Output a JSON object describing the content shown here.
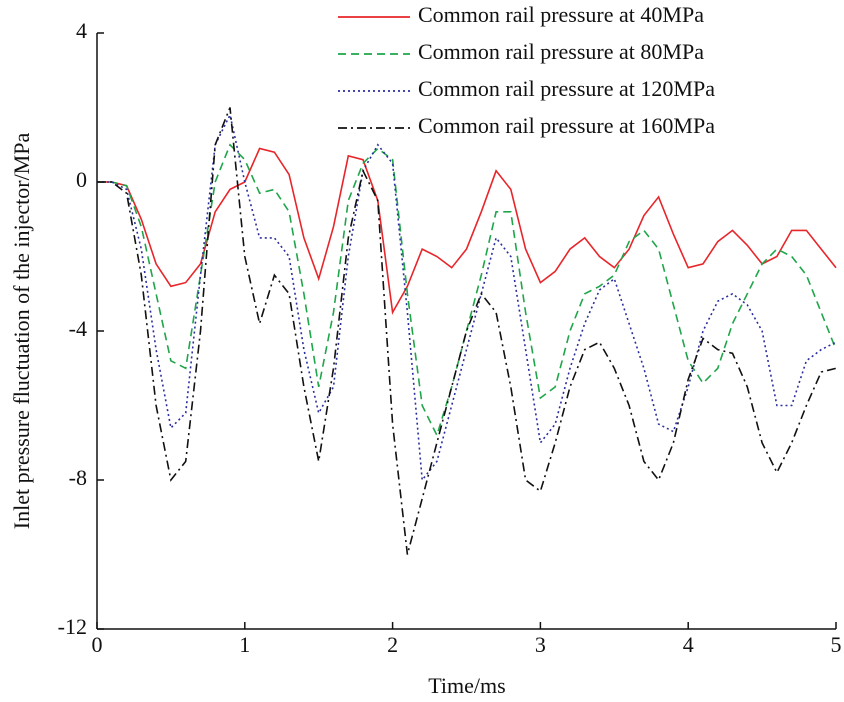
{
  "chart_data": {
    "type": "line",
    "xlabel": "Time/ms",
    "ylabel": "Inlet pressure fluctuation of the injector/MPa",
    "x": [
      0,
      0.1,
      0.2,
      0.3,
      0.4,
      0.5,
      0.6,
      0.7,
      0.8,
      0.9,
      1,
      1.1,
      1.2,
      1.3,
      1.4,
      1.5,
      1.6,
      1.7,
      1.8,
      1.9,
      2,
      2.1,
      2.2,
      2.3,
      2.4,
      2.5,
      2.6,
      2.7,
      2.8,
      2.9,
      3,
      3.1,
      3.2,
      3.3,
      3.4,
      3.5,
      3.6,
      3.7,
      3.8,
      3.9,
      4,
      4.1,
      4.2,
      4.3,
      4.4,
      4.5,
      4.6,
      4.7,
      4.8,
      4.9,
      5
    ],
    "series": [
      {
        "name": "Common rail pressure at 40MPa",
        "color": "#e8262a",
        "dash": "solid",
        "values": [
          0,
          0,
          -0.1,
          -1,
          -2.2,
          -2.8,
          -2.7,
          -2.2,
          -0.8,
          -0.2,
          0,
          0.9,
          0.8,
          0.2,
          -1.5,
          -2.6,
          -1.2,
          0.7,
          0.6,
          -0.5,
          -3.5,
          -2.8,
          -1.8,
          -2,
          -2.3,
          -1.8,
          -0.8,
          0.3,
          -0.2,
          -1.8,
          -2.7,
          -2.4,
          -1.8,
          -1.5,
          -2,
          -2.3,
          -1.8,
          -0.9,
          -0.4,
          -1.4,
          -2.3,
          -2.2,
          -1.6,
          -1.3,
          -1.7,
          -2.2,
          -2,
          -1.3,
          -1.3,
          -1.8,
          -2.3
        ]
      },
      {
        "name": "Common rail pressure at 80MPa",
        "color": "#1fa64a",
        "dash": "dashed",
        "values": [
          0,
          0,
          -0.1,
          -1.2,
          -3,
          -4.8,
          -5,
          -2.5,
          0,
          1,
          0.6,
          -0.3,
          -0.2,
          -0.8,
          -3,
          -5.5,
          -3.5,
          -0.5,
          0.5,
          0.9,
          0.6,
          -3,
          -6,
          -6.8,
          -5.5,
          -4,
          -2.5,
          -0.8,
          -0.8,
          -3.5,
          -5.8,
          -5.5,
          -4,
          -3,
          -2.8,
          -2.5,
          -1.6,
          -1.3,
          -1.8,
          -3.3,
          -4.8,
          -5.4,
          -5,
          -3.8,
          -3,
          -2.2,
          -1.8,
          -2,
          -2.5,
          -3.5,
          -4.5
        ]
      },
      {
        "name": "Common rail pressure at 120MPa",
        "color": "#2b2f9e",
        "dash": "dotted",
        "values": [
          0,
          0,
          -0.2,
          -1.8,
          -4.5,
          -6.6,
          -6.2,
          -2.5,
          1,
          1.8,
          0,
          -1.5,
          -1.5,
          -2,
          -4.5,
          -6.2,
          -5.5,
          -2,
          0.3,
          1,
          0.5,
          -3.5,
          -8,
          -7.5,
          -6,
          -4.5,
          -3,
          -1.5,
          -2,
          -4.5,
          -7,
          -6.5,
          -5,
          -3.8,
          -2.9,
          -2.6,
          -3.8,
          -5,
          -6.5,
          -6.7,
          -5.5,
          -4,
          -3.2,
          -3,
          -3.3,
          -4,
          -6,
          -6,
          -4.8,
          -4.5,
          -4.3
        ]
      },
      {
        "name": "Common rail pressure at 160MPa",
        "color": "#111111",
        "dash": "dashdot",
        "values": [
          0,
          0,
          -0.3,
          -2.5,
          -6,
          -8,
          -7.5,
          -4,
          1,
          2,
          -2,
          -3.8,
          -2.5,
          -3,
          -5.5,
          -7.5,
          -5,
          -1.5,
          0.3,
          -0.5,
          -6.5,
          -10,
          -8.5,
          -7,
          -5.5,
          -4,
          -3,
          -3.5,
          -5.5,
          -8,
          -8.3,
          -7,
          -5.5,
          -4.5,
          -4.3,
          -5,
          -6,
          -7.5,
          -8,
          -7,
          -5.3,
          -4.2,
          -4.5,
          -4.6,
          -5.5,
          -7,
          -7.8,
          -7,
          -6,
          -5.1,
          -5
        ]
      }
    ],
    "xlim": [
      0,
      5
    ],
    "xticks": [
      0,
      1,
      2,
      3,
      4,
      5
    ],
    "ylim": [
      -12,
      4
    ],
    "yticks": [
      4,
      0,
      -4,
      -8,
      -12
    ],
    "legend": "upper right"
  }
}
